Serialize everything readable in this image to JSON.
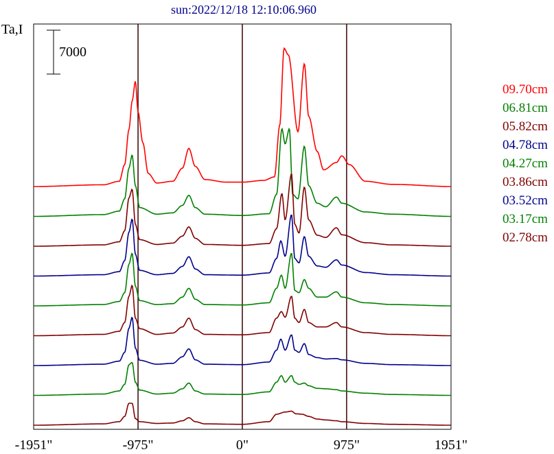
{
  "chart_data": {
    "type": "line",
    "title": "sun:2022/12/18 12:10:06.960",
    "ylabel": "Ta,I",
    "scale_bar_label": "7000",
    "x_ticks": [
      {
        "value": -1951,
        "label": "-1951\""
      },
      {
        "value": -975,
        "label": "-975\""
      },
      {
        "value": 0,
        "label": "0\""
      },
      {
        "value": 975,
        "label": "975\""
      },
      {
        "value": 1951,
        "label": "1951\""
      }
    ],
    "vertical_lines_at": [
      -975,
      0,
      975
    ],
    "xlim": [
      -1951,
      1951
    ],
    "series": [
      {
        "name": "09.70cm",
        "color": "#ff0000",
        "baseline": 0,
        "profile": [
          [
            -1951,
            0
          ],
          [
            -1300,
            0.4
          ],
          [
            -1150,
            1.2
          ],
          [
            -1100,
            5
          ],
          [
            -1060,
            13
          ],
          [
            -1030,
            19.5
          ],
          [
            -1000,
            24
          ],
          [
            -975,
            17
          ],
          [
            -930,
            10
          ],
          [
            -880,
            3
          ],
          [
            -800,
            0.8
          ],
          [
            -650,
            1.2
          ],
          [
            -560,
            4.2
          ],
          [
            -500,
            8.7
          ],
          [
            -440,
            4.6
          ],
          [
            -350,
            1.6
          ],
          [
            -150,
            1
          ],
          [
            0,
            1
          ],
          [
            200,
            1.4
          ],
          [
            300,
            2.2
          ],
          [
            350,
            14
          ],
          [
            390,
            31.5
          ],
          [
            430,
            30
          ],
          [
            520,
            12.5
          ],
          [
            580,
            28
          ],
          [
            620,
            16
          ],
          [
            700,
            8
          ],
          [
            760,
            3.8
          ],
          [
            880,
            5.5
          ],
          [
            930,
            7
          ],
          [
            1000,
            5
          ],
          [
            1150,
            1.2
          ],
          [
            1400,
            0.5
          ],
          [
            1951,
            0
          ]
        ]
      },
      {
        "name": "06.81cm",
        "color": "#008000",
        "baseline": 1,
        "profile": [
          [
            -1951,
            0
          ],
          [
            -1300,
            0.4
          ],
          [
            -1150,
            1.2
          ],
          [
            -1100,
            4
          ],
          [
            -1060,
            11
          ],
          [
            -1030,
            14
          ],
          [
            -1000,
            7
          ],
          [
            -960,
            2
          ],
          [
            -800,
            0.5
          ],
          [
            -650,
            0.8
          ],
          [
            -560,
            2.5
          ],
          [
            -500,
            4.8
          ],
          [
            -440,
            2
          ],
          [
            -350,
            0.5
          ],
          [
            0,
            0.2
          ],
          [
            250,
            0.6
          ],
          [
            320,
            5
          ],
          [
            370,
            20
          ],
          [
            400,
            16.5
          ],
          [
            440,
            20
          ],
          [
            470,
            5
          ],
          [
            520,
            4
          ],
          [
            580,
            16
          ],
          [
            620,
            7
          ],
          [
            700,
            3
          ],
          [
            780,
            2.2
          ],
          [
            880,
            4.4
          ],
          [
            930,
            3
          ],
          [
            1150,
            1
          ],
          [
            1400,
            0.5
          ],
          [
            1951,
            0
          ]
        ]
      },
      {
        "name": "05.82cm",
        "color": "#800000",
        "baseline": 2,
        "profile": [
          [
            -1951,
            0
          ],
          [
            -1300,
            0.3
          ],
          [
            -1150,
            1
          ],
          [
            -1100,
            3.5
          ],
          [
            -1060,
            11
          ],
          [
            -1030,
            13
          ],
          [
            -1000,
            5
          ],
          [
            -960,
            1.5
          ],
          [
            -800,
            0.4
          ],
          [
            -650,
            0.7
          ],
          [
            -560,
            2.3
          ],
          [
            -500,
            4.4
          ],
          [
            -440,
            1.8
          ],
          [
            -350,
            0.4
          ],
          [
            0,
            0.2
          ],
          [
            250,
            0.6
          ],
          [
            320,
            4
          ],
          [
            370,
            12
          ],
          [
            400,
            6
          ],
          [
            460,
            16.5
          ],
          [
            490,
            5
          ],
          [
            530,
            3
          ],
          [
            580,
            13.5
          ],
          [
            620,
            6
          ],
          [
            700,
            2.5
          ],
          [
            780,
            2
          ],
          [
            880,
            4.2
          ],
          [
            930,
            2.6
          ],
          [
            1150,
            0.8
          ],
          [
            1400,
            0.3
          ],
          [
            1951,
            0
          ]
        ]
      },
      {
        "name": "04.78cm",
        "color": "#00008b",
        "baseline": 3,
        "profile": [
          [
            -1951,
            0
          ],
          [
            -1300,
            0.3
          ],
          [
            -1150,
            1
          ],
          [
            -1100,
            3.5
          ],
          [
            -1060,
            10
          ],
          [
            -1030,
            13
          ],
          [
            -1000,
            5
          ],
          [
            -960,
            1.3
          ],
          [
            -800,
            0.3
          ],
          [
            -650,
            0.6
          ],
          [
            -560,
            2.2
          ],
          [
            -500,
            4.4
          ],
          [
            -440,
            1.6
          ],
          [
            -350,
            0.3
          ],
          [
            0,
            0.2
          ],
          [
            250,
            0.7
          ],
          [
            320,
            4
          ],
          [
            360,
            8
          ],
          [
            400,
            4.5
          ],
          [
            460,
            14
          ],
          [
            490,
            4
          ],
          [
            530,
            3
          ],
          [
            580,
            9
          ],
          [
            620,
            4.5
          ],
          [
            700,
            2.3
          ],
          [
            780,
            2
          ],
          [
            880,
            3.7
          ],
          [
            930,
            2.5
          ],
          [
            1150,
            0.8
          ],
          [
            1400,
            0.3
          ],
          [
            1951,
            0
          ]
        ]
      },
      {
        "name": "04.27cm",
        "color": "#008000",
        "baseline": 4,
        "profile": [
          [
            -1951,
            0
          ],
          [
            -1300,
            0.3
          ],
          [
            -1150,
            1
          ],
          [
            -1100,
            3
          ],
          [
            -1060,
            9.5
          ],
          [
            -1030,
            12
          ],
          [
            -1000,
            4.5
          ],
          [
            -960,
            1.2
          ],
          [
            -800,
            0.3
          ],
          [
            -650,
            0.5
          ],
          [
            -560,
            2
          ],
          [
            -500,
            4
          ],
          [
            -440,
            1.5
          ],
          [
            -350,
            0.3
          ],
          [
            0,
            0.2
          ],
          [
            250,
            0.7
          ],
          [
            320,
            4
          ],
          [
            365,
            7
          ],
          [
            400,
            4
          ],
          [
            460,
            12
          ],
          [
            490,
            3.5
          ],
          [
            530,
            3
          ],
          [
            580,
            6
          ],
          [
            620,
            4
          ],
          [
            700,
            2
          ],
          [
            780,
            2
          ],
          [
            880,
            3.2
          ],
          [
            930,
            2
          ],
          [
            1150,
            0.7
          ],
          [
            1400,
            0.3
          ],
          [
            1951,
            0
          ]
        ]
      },
      {
        "name": "03.86cm",
        "color": "#800000",
        "baseline": 5,
        "profile": [
          [
            -1951,
            0
          ],
          [
            -1300,
            0.3
          ],
          [
            -1150,
            1
          ],
          [
            -1100,
            3
          ],
          [
            -1060,
            9
          ],
          [
            -1030,
            11.5
          ],
          [
            -1000,
            4
          ],
          [
            -960,
            1.6
          ],
          [
            -800,
            0.3
          ],
          [
            -650,
            0.6
          ],
          [
            -560,
            2
          ],
          [
            -500,
            4
          ],
          [
            -440,
            1.4
          ],
          [
            -350,
            0.3
          ],
          [
            0,
            0.2
          ],
          [
            250,
            0.7
          ],
          [
            320,
            4
          ],
          [
            365,
            5.5
          ],
          [
            400,
            4.2
          ],
          [
            460,
            9
          ],
          [
            490,
            4
          ],
          [
            530,
            3
          ],
          [
            580,
            6
          ],
          [
            620,
            3
          ],
          [
            700,
            2
          ],
          [
            780,
            2
          ],
          [
            880,
            3
          ],
          [
            930,
            2
          ],
          [
            1150,
            0.7
          ],
          [
            1400,
            0.3
          ],
          [
            1951,
            0
          ]
        ]
      },
      {
        "name": "03.52cm",
        "color": "#00008b",
        "baseline": 6,
        "profile": [
          [
            -1951,
            0
          ],
          [
            -1300,
            0.3
          ],
          [
            -1150,
            1
          ],
          [
            -1100,
            3
          ],
          [
            -1060,
            8.5
          ],
          [
            -1030,
            11
          ],
          [
            -1000,
            4
          ],
          [
            -960,
            1.2
          ],
          [
            -800,
            0.3
          ],
          [
            -650,
            0.5
          ],
          [
            -560,
            2
          ],
          [
            -500,
            3.8
          ],
          [
            -440,
            1.3
          ],
          [
            -350,
            0.3
          ],
          [
            0,
            0.2
          ],
          [
            250,
            0.8
          ],
          [
            320,
            3.5
          ],
          [
            360,
            6
          ],
          [
            400,
            3.5
          ],
          [
            460,
            7
          ],
          [
            490,
            3.5
          ],
          [
            530,
            3
          ],
          [
            580,
            5
          ],
          [
            620,
            2.5
          ],
          [
            700,
            1.8
          ],
          [
            780,
            1.5
          ],
          [
            880,
            1.6
          ],
          [
            930,
            1.3
          ],
          [
            1150,
            0.5
          ],
          [
            1400,
            0.2
          ],
          [
            1951,
            0
          ]
        ]
      },
      {
        "name": "03.17cm",
        "color": "#008000",
        "baseline": 7,
        "profile": [
          [
            -1951,
            0
          ],
          [
            -1300,
            0.3
          ],
          [
            -1150,
            1
          ],
          [
            -1100,
            2.5
          ],
          [
            -1060,
            7
          ],
          [
            -1030,
            7.5
          ],
          [
            -1000,
            3
          ],
          [
            -960,
            1.2
          ],
          [
            -800,
            0.3
          ],
          [
            -650,
            0.5
          ],
          [
            -560,
            1.5
          ],
          [
            -500,
            2.8
          ],
          [
            -440,
            1
          ],
          [
            -350,
            0.3
          ],
          [
            0,
            0.2
          ],
          [
            250,
            0.8
          ],
          [
            320,
            3
          ],
          [
            365,
            4.5
          ],
          [
            400,
            3
          ],
          [
            460,
            4.5
          ],
          [
            490,
            3
          ],
          [
            530,
            2.5
          ],
          [
            580,
            2.8
          ],
          [
            620,
            2.2
          ],
          [
            700,
            1.6
          ],
          [
            780,
            1.5
          ],
          [
            880,
            1.3
          ],
          [
            930,
            1
          ],
          [
            1150,
            0.5
          ],
          [
            1400,
            0.2
          ],
          [
            1951,
            0
          ]
        ]
      },
      {
        "name": "02.78cm",
        "color": "#800000",
        "baseline": 8,
        "profile": [
          [
            -1951,
            0
          ],
          [
            -1300,
            0.3
          ],
          [
            -1150,
            0.8
          ],
          [
            -1100,
            2
          ],
          [
            -1060,
            5
          ],
          [
            -1030,
            5
          ],
          [
            -1000,
            1.5
          ],
          [
            -960,
            0.8
          ],
          [
            -800,
            0.4
          ],
          [
            -650,
            0.5
          ],
          [
            -560,
            1
          ],
          [
            -500,
            1.7
          ],
          [
            -440,
            0.8
          ],
          [
            -350,
            0.3
          ],
          [
            0,
            0.2
          ],
          [
            250,
            0.8
          ],
          [
            320,
            2.5
          ],
          [
            400,
            3
          ],
          [
            460,
            3.2
          ],
          [
            500,
            2.6
          ],
          [
            560,
            2.5
          ],
          [
            620,
            2
          ],
          [
            700,
            1.4
          ],
          [
            780,
            1.2
          ],
          [
            880,
            1
          ],
          [
            930,
            0.8
          ],
          [
            1150,
            0.4
          ],
          [
            1400,
            0.2
          ],
          [
            1951,
            0
          ]
        ]
      }
    ]
  }
}
